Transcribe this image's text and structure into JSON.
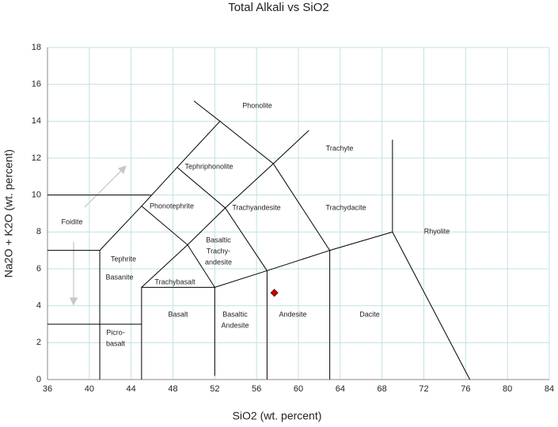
{
  "chart_data": {
    "type": "scatter",
    "title": "Total Alkali vs SiO2",
    "x_label": "SiO2 (wt. percent)",
    "y_label": "Na2O + K2O (wt. percent)",
    "xlim": [
      36,
      84
    ],
    "ylim": [
      0,
      18
    ],
    "xticks": [
      36,
      40,
      44,
      48,
      52,
      56,
      60,
      64,
      68,
      72,
      76,
      80,
      84
    ],
    "yticks": [
      0,
      2,
      4,
      6,
      8,
      10,
      12,
      14,
      16,
      18
    ],
    "grid": true,
    "series": [
      {
        "color": "#c00000",
        "x": [
          57.7
        ],
        "values": [
          4.7
        ]
      }
    ],
    "boundaries": [
      {
        "x": [
          36,
          41
        ],
        "y": [
          7,
          7
        ]
      },
      {
        "x": [
          36,
          45
        ],
        "y": [
          3,
          3
        ]
      },
      {
        "x": [
          36,
          45.9
        ],
        "y": [
          10,
          10
        ]
      },
      {
        "x": [
          41,
          41,
          45,
          48.4,
          52.5,
          50
        ],
        "y": [
          0,
          7,
          9.4,
          11.5,
          14,
          15.1
        ]
      },
      {
        "x": [
          52.5,
          57.6,
          63,
          69,
          76.4
        ],
        "y": [
          14,
          11.7,
          7,
          8,
          0
        ]
      },
      {
        "x": [
          69,
          69
        ],
        "y": [
          8,
          13
        ]
      },
      {
        "x": [
          57.6,
          61
        ],
        "y": [
          11.7,
          13.5
        ]
      },
      {
        "x": [
          45,
          45,
          52,
          57,
          63
        ],
        "y": [
          0,
          5,
          5,
          5.9,
          7
        ]
      },
      {
        "x": [
          52,
          52
        ],
        "y": [
          0.2,
          5
        ]
      },
      {
        "x": [
          57,
          57
        ],
        "y": [
          0,
          5.9
        ]
      },
      {
        "x": [
          63,
          63
        ],
        "y": [
          0,
          7
        ]
      },
      {
        "x": [
          45,
          49.4,
          53,
          57.6
        ],
        "y": [
          5,
          7.3,
          9.3,
          11.7
        ]
      },
      {
        "x": [
          45,
          49.4,
          52
        ],
        "y": [
          9.4,
          7.3,
          5
        ]
      },
      {
        "x": [
          48.4,
          53,
          57
        ],
        "y": [
          11.5,
          9.3,
          5.9
        ]
      }
    ],
    "region_labels": [
      [
        "Phonolite"
      ],
      [
        "Trachyte"
      ],
      [
        "Tephriphonolite"
      ],
      [
        "Phonotephrite"
      ],
      [
        "Trachyandesite"
      ],
      [
        "Trachydacite"
      ],
      [
        "Foidite"
      ],
      [
        "Rhyolite"
      ],
      [
        "Basaltic",
        "Trachy-",
        "andesite"
      ],
      [
        "Tephrite"
      ],
      [
        "Basanite"
      ],
      [
        "Trachybasalt"
      ],
      [
        "Basalt"
      ],
      [
        "Basaltic",
        "Andesite"
      ],
      [
        "Andesite"
      ],
      [
        "Dacite"
      ],
      [
        "Picro-",
        "basalt"
      ]
    ]
  }
}
